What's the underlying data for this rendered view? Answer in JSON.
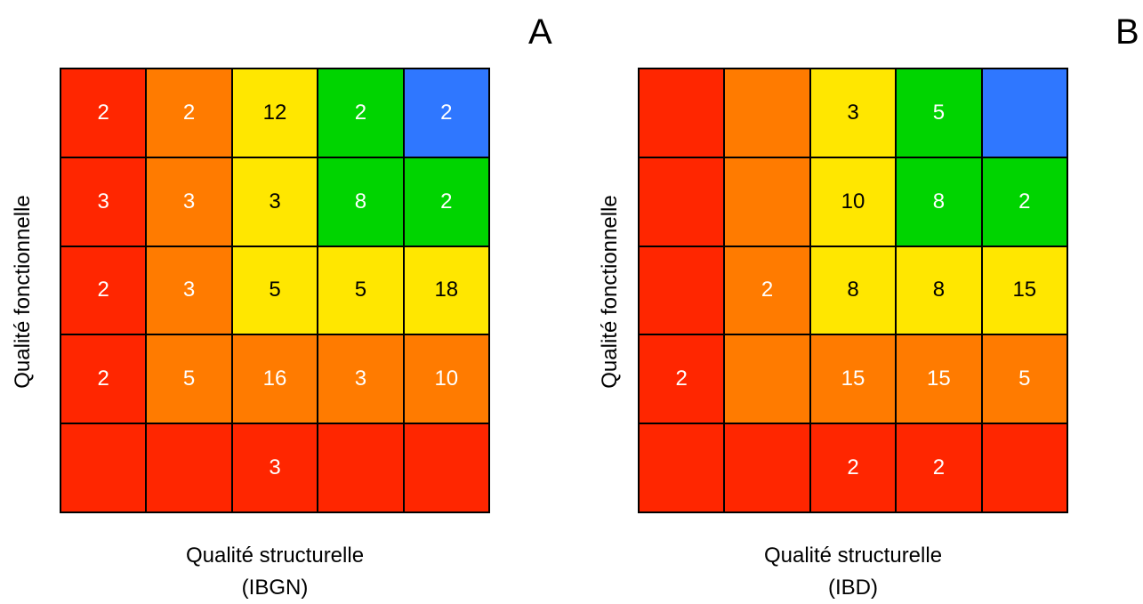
{
  "palette": {
    "red": "#ff2600",
    "orange": "#ff7b00",
    "yellow": "#ffe700",
    "green": "#00d400",
    "blue": "#2f77ff"
  },
  "chart_data": [
    {
      "type": "heatmap",
      "panel_label": "A",
      "ylabel": "Qualité fonctionnelle",
      "xlabel": "Qualité structurelle",
      "xlabel_sub": "(IBGN)",
      "grid_colors": [
        [
          "red",
          "orange",
          "yellow",
          "green",
          "blue"
        ],
        [
          "red",
          "orange",
          "yellow",
          "green",
          "green"
        ],
        [
          "red",
          "orange",
          "yellow",
          "yellow",
          "yellow"
        ],
        [
          "red",
          "orange",
          "orange",
          "orange",
          "orange"
        ],
        [
          "red",
          "red",
          "red",
          "red",
          "red"
        ]
      ],
      "values": [
        [
          "2",
          "2",
          "12",
          "2",
          "2"
        ],
        [
          "3",
          "3",
          "3",
          "8",
          "2"
        ],
        [
          "2",
          "3",
          "5",
          "5",
          "18"
        ],
        [
          "2",
          "5",
          "16",
          "3",
          "10"
        ],
        [
          "",
          "",
          "3",
          "",
          ""
        ]
      ]
    },
    {
      "type": "heatmap",
      "panel_label": "B",
      "ylabel": "Qualité fonctionnelle",
      "xlabel": "Qualité structurelle",
      "xlabel_sub": "(IBD)",
      "grid_colors": [
        [
          "red",
          "orange",
          "yellow",
          "green",
          "blue"
        ],
        [
          "red",
          "orange",
          "yellow",
          "green",
          "green"
        ],
        [
          "red",
          "orange",
          "yellow",
          "yellow",
          "yellow"
        ],
        [
          "red",
          "orange",
          "orange",
          "orange",
          "orange"
        ],
        [
          "red",
          "red",
          "red",
          "red",
          "red"
        ]
      ],
      "values": [
        [
          "",
          "",
          "3",
          "5",
          ""
        ],
        [
          "",
          "",
          "10",
          "8",
          "2"
        ],
        [
          "",
          "2",
          "8",
          "8",
          "15"
        ],
        [
          "2",
          "",
          "15",
          "15",
          "5"
        ],
        [
          "",
          "",
          "2",
          "2",
          ""
        ]
      ]
    }
  ]
}
